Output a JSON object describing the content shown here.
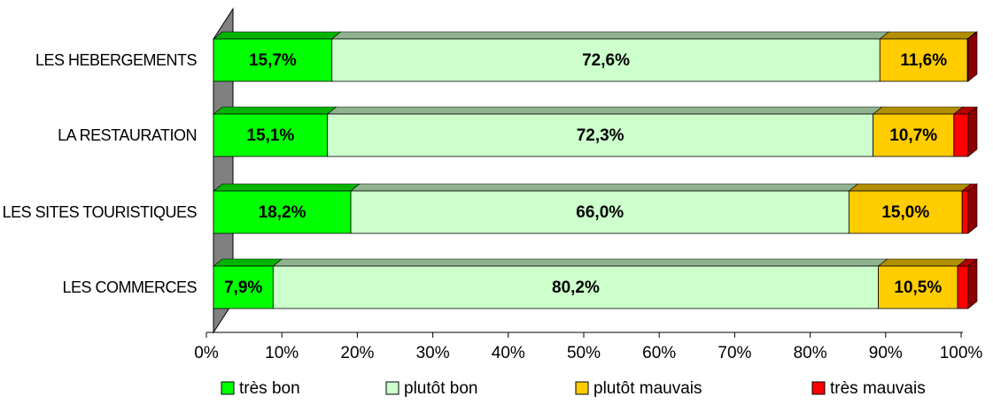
{
  "chart_data": {
    "type": "stacked-bar-horizontal",
    "categories": [
      "LES HEBERGEMENTS",
      "LA RESTAURATION",
      "LES SITES TOURISTIQUES",
      "LES COMMERCES"
    ],
    "series": [
      {
        "name": "très bon",
        "color": "#00ff00",
        "values": [
          15.7,
          15.1,
          18.2,
          7.9
        ],
        "value_labels": [
          "15,7%",
          "15,1%",
          "18,2%",
          "7,9%"
        ]
      },
      {
        "name": "plutôt bon",
        "color": "#ccffcc",
        "values": [
          72.6,
          72.3,
          66.0,
          80.2
        ],
        "value_labels": [
          "72,6%",
          "72,3%",
          "66,0%",
          "80,2%"
        ]
      },
      {
        "name": "plutôt mauvais",
        "color": "#ffcc00",
        "values": [
          11.6,
          10.7,
          15.0,
          10.5
        ],
        "value_labels": [
          "11,6%",
          "10,7%",
          "15,0%",
          "10,5%"
        ]
      },
      {
        "name": "très mauvais",
        "color": "#ff0000",
        "values": [
          0.1,
          1.9,
          0.8,
          1.4
        ]
      }
    ],
    "xlim": [
      0,
      100
    ],
    "xticks": [
      {
        "value": 0,
        "label": "0%"
      },
      {
        "value": 10,
        "label": "10%"
      },
      {
        "value": 20,
        "label": "20%"
      },
      {
        "value": 30,
        "label": "30%"
      },
      {
        "value": 40,
        "label": "40%"
      },
      {
        "value": 50,
        "label": "50%"
      },
      {
        "value": 60,
        "label": "60%"
      },
      {
        "value": 70,
        "label": "70%"
      },
      {
        "value": 80,
        "label": "80%"
      },
      {
        "value": 90,
        "label": "90%"
      },
      {
        "value": 100,
        "label": "100%"
      }
    ],
    "legend": "bottom"
  }
}
